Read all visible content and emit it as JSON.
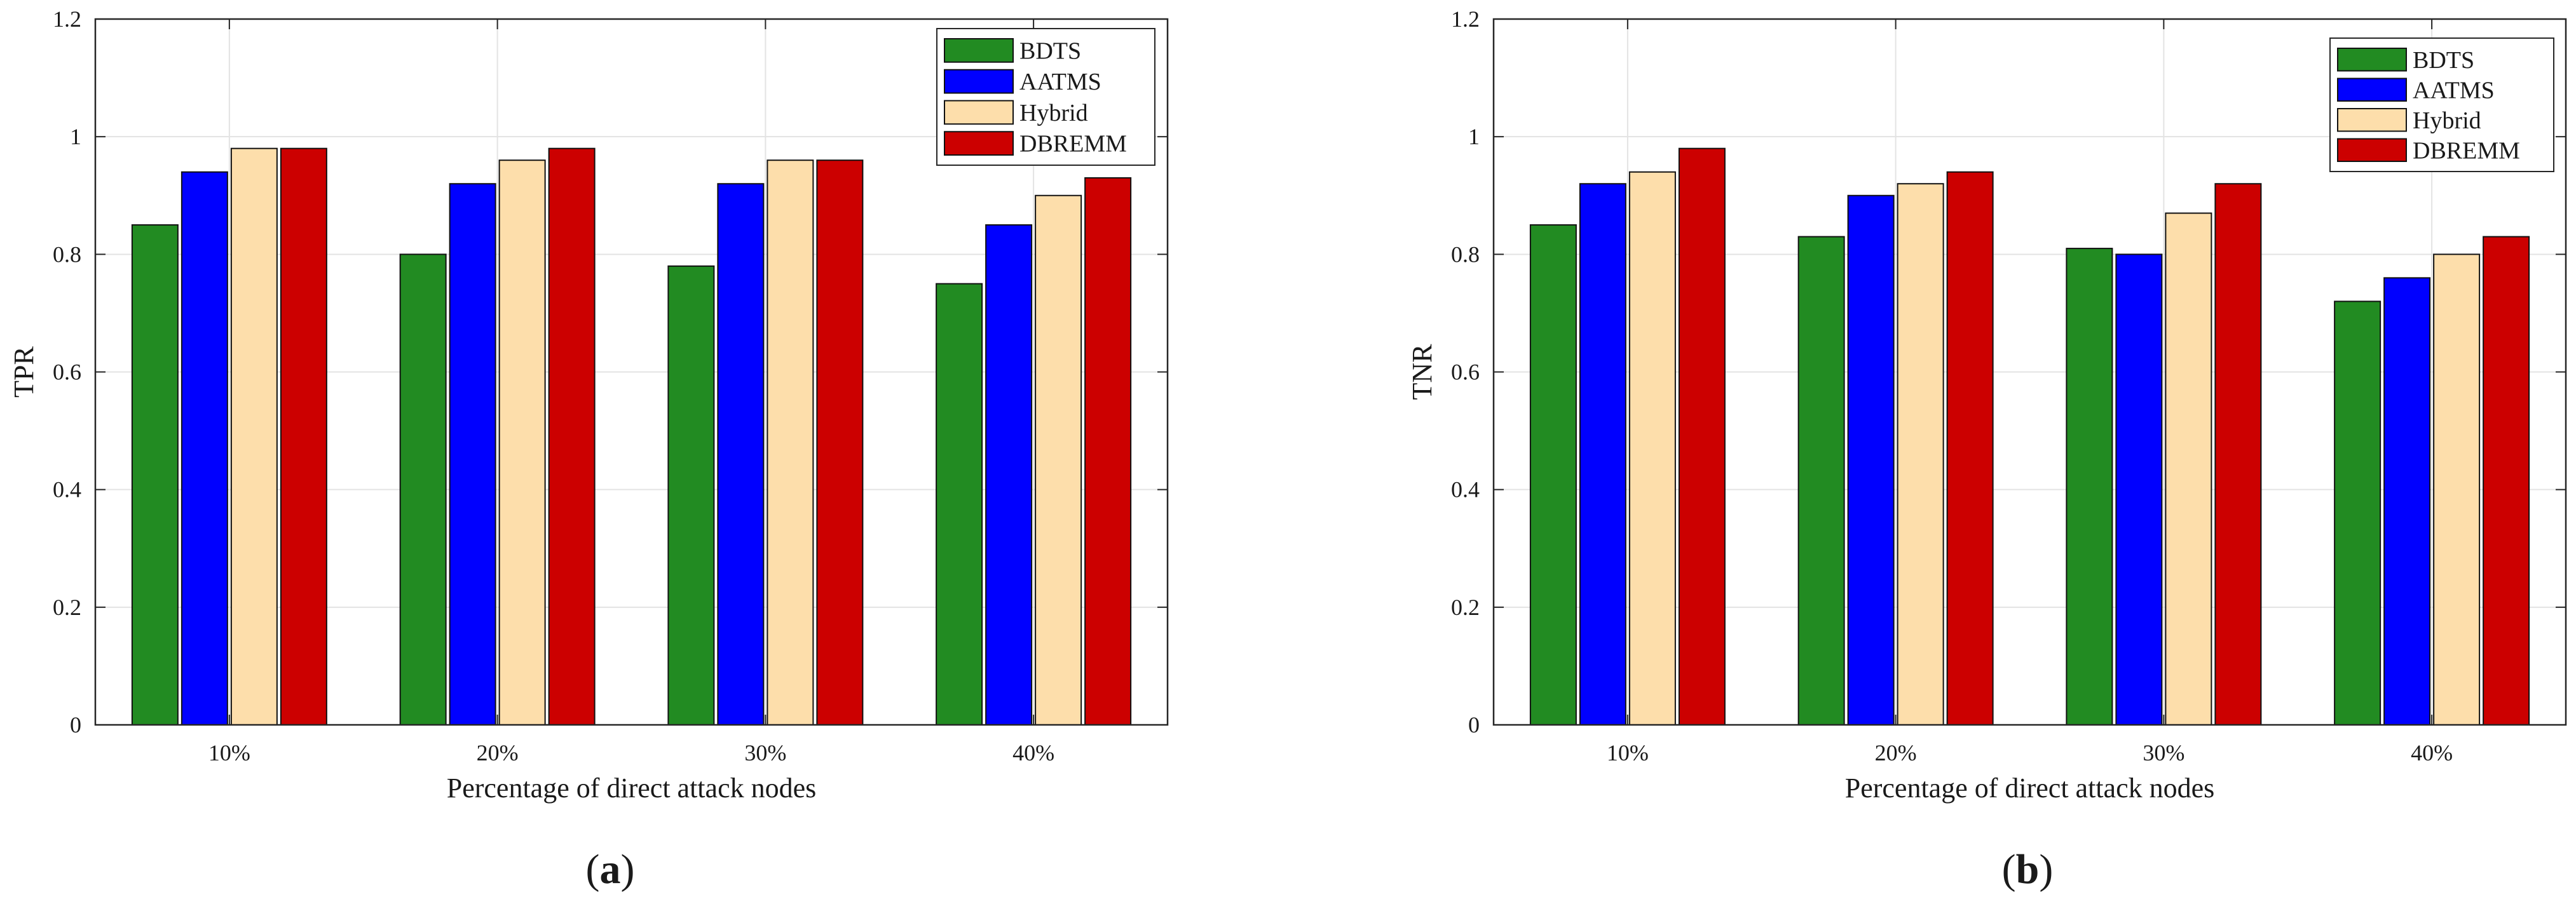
{
  "chart_data": [
    {
      "type": "bar",
      "panel_label": "a",
      "categories": [
        "10%",
        "20%",
        "30%",
        "40%"
      ],
      "series": [
        {
          "name": "BDTS",
          "values": [
            0.85,
            0.8,
            0.78,
            0.75
          ]
        },
        {
          "name": "AATMS",
          "values": [
            0.94,
            0.92,
            0.92,
            0.85
          ]
        },
        {
          "name": "Hybrid",
          "values": [
            0.98,
            0.96,
            0.96,
            0.9
          ]
        },
        {
          "name": "DBREMM",
          "values": [
            0.98,
            0.98,
            0.96,
            0.93
          ]
        }
      ],
      "xlabel": "Percentage of direct attack nodes",
      "ylabel": "TPR",
      "ylim": [
        0,
        1.2
      ],
      "yticks": [
        "0",
        "0.2",
        "0.4",
        "0.6",
        "0.8",
        "1",
        "1.2"
      ],
      "grid": true,
      "legend_position": "top-right"
    },
    {
      "type": "bar",
      "panel_label": "b",
      "categories": [
        "10%",
        "20%",
        "30%",
        "40%"
      ],
      "series": [
        {
          "name": "BDTS",
          "values": [
            0.85,
            0.83,
            0.81,
            0.72
          ]
        },
        {
          "name": "AATMS",
          "values": [
            0.92,
            0.9,
            0.8,
            0.76
          ]
        },
        {
          "name": "Hybrid",
          "values": [
            0.94,
            0.92,
            0.87,
            0.8
          ]
        },
        {
          "name": "DBREMM",
          "values": [
            0.98,
            0.94,
            0.92,
            0.83
          ]
        }
      ],
      "xlabel": "Percentage of direct attack nodes",
      "ylabel": "TNR",
      "ylim": [
        0,
        1.2
      ],
      "yticks": [
        "0",
        "0.2",
        "0.4",
        "0.6",
        "0.8",
        "1",
        "1.2"
      ],
      "grid": true,
      "legend_position": "top-right"
    }
  ],
  "colors": {
    "BDTS": "#228b22",
    "AATMS": "#0000ff",
    "Hybrid": "#fddeab",
    "DBREMM": "#cc0000",
    "grid": "#e3e3e3",
    "axis": "#262626"
  }
}
